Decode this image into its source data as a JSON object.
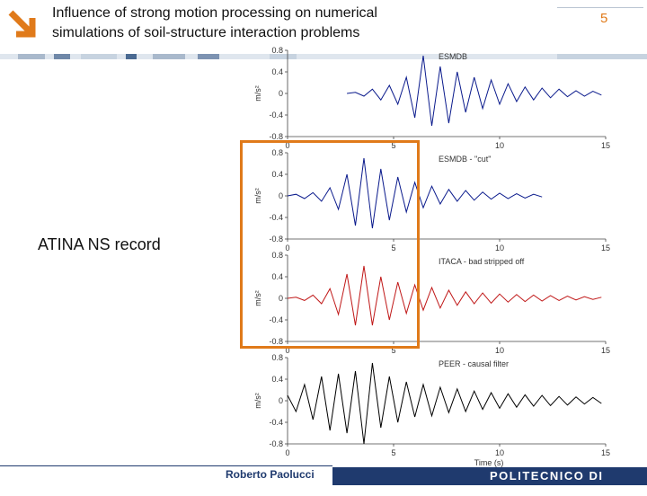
{
  "slide": {
    "title": "Influence of strong motion processing on numerical\nsimulations of soil-structure interaction problems",
    "page_number": "5",
    "record_label": "ATINA NS record",
    "author": "Roberto Paolucci",
    "institution": "POLITECNICO DI MILANO",
    "colors": {
      "accent": "#e07a1a",
      "navy": "#1f3a6e"
    }
  },
  "chart_data": [
    {
      "type": "line",
      "title": "ESMDB",
      "ylabel": "m/s²",
      "xlim": [
        0,
        15
      ],
      "ylim": [
        -0.8,
        0.8
      ],
      "yticks": [
        "0.8",
        "0.4",
        "0",
        "-0.4",
        "-0.8"
      ],
      "xticks": [
        "0",
        "5",
        "10",
        "15"
      ],
      "color": "#0a1a8c",
      "series": [
        {
          "x": [
            2.8,
            3.2,
            3.6,
            4.0,
            4.4,
            4.8,
            5.2,
            5.6,
            6.0,
            6.4,
            6.8,
            7.2,
            7.6,
            8.0,
            8.4,
            8.8,
            9.2,
            9.6,
            10.0,
            10.4,
            10.8,
            11.2,
            11.6,
            12.0,
            12.4,
            12.8,
            13.2,
            13.6,
            14.0,
            14.4,
            14.8
          ],
          "y": [
            0.0,
            0.02,
            -0.05,
            0.08,
            -0.12,
            0.15,
            -0.2,
            0.3,
            -0.45,
            0.7,
            -0.6,
            0.5,
            -0.55,
            0.4,
            -0.35,
            0.3,
            -0.28,
            0.25,
            -0.2,
            0.18,
            -0.15,
            0.12,
            -0.12,
            0.1,
            -0.08,
            0.08,
            -0.06,
            0.05,
            -0.05,
            0.04,
            -0.03
          ]
        }
      ]
    },
    {
      "type": "line",
      "title": "ESMDB - \"cut\"",
      "ylabel": "m/s²",
      "xlim": [
        0,
        15
      ],
      "ylim": [
        -0.8,
        0.8
      ],
      "yticks": [
        "0.8",
        "0.4",
        "0",
        "-0.4",
        "-0.8"
      ],
      "xticks": [
        "0",
        "5",
        "10",
        "15"
      ],
      "color": "#0a1a8c",
      "series": [
        {
          "x": [
            0.0,
            0.4,
            0.8,
            1.2,
            1.6,
            2.0,
            2.4,
            2.8,
            3.2,
            3.6,
            4.0,
            4.4,
            4.8,
            5.2,
            5.6,
            6.0,
            6.4,
            6.8,
            7.2,
            7.6,
            8.0,
            8.4,
            8.8,
            9.2,
            9.6,
            10.0,
            10.4,
            10.8,
            11.2,
            11.6,
            12.0
          ],
          "y": [
            0.0,
            0.03,
            -0.05,
            0.06,
            -0.1,
            0.15,
            -0.25,
            0.4,
            -0.55,
            0.7,
            -0.6,
            0.5,
            -0.45,
            0.35,
            -0.3,
            0.25,
            -0.22,
            0.18,
            -0.15,
            0.12,
            -0.1,
            0.1,
            -0.08,
            0.07,
            -0.06,
            0.05,
            -0.05,
            0.04,
            -0.04,
            0.03,
            -0.02
          ]
        }
      ]
    },
    {
      "type": "line",
      "title": "ITACA - bad stripped off",
      "ylabel": "m/s²",
      "xlim": [
        0,
        15
      ],
      "ylim": [
        -0.8,
        0.8
      ],
      "yticks": [
        "0.8",
        "0.4",
        "0",
        "-0.4",
        "-0.8"
      ],
      "xticks": [
        "0",
        "5",
        "10",
        "15"
      ],
      "color": "#c01818",
      "series": [
        {
          "x": [
            0.0,
            0.4,
            0.8,
            1.2,
            1.6,
            2.0,
            2.4,
            2.8,
            3.2,
            3.6,
            4.0,
            4.4,
            4.8,
            5.2,
            5.6,
            6.0,
            6.4,
            6.8,
            7.2,
            7.6,
            8.0,
            8.4,
            8.8,
            9.2,
            9.6,
            10.0,
            10.4,
            10.8,
            11.2,
            11.6,
            12.0,
            12.4,
            12.8,
            13.2,
            13.6,
            14.0,
            14.4,
            14.8
          ],
          "y": [
            0.0,
            0.02,
            -0.04,
            0.06,
            -0.1,
            0.18,
            -0.3,
            0.45,
            -0.5,
            0.6,
            -0.5,
            0.4,
            -0.4,
            0.3,
            -0.28,
            0.25,
            -0.22,
            0.2,
            -0.18,
            0.15,
            -0.13,
            0.12,
            -0.1,
            0.1,
            -0.09,
            0.08,
            -0.07,
            0.07,
            -0.06,
            0.06,
            -0.05,
            0.05,
            -0.04,
            0.04,
            -0.03,
            0.03,
            -0.02,
            0.02
          ]
        }
      ]
    },
    {
      "type": "line",
      "title": "PEER - causal filter",
      "ylabel": "m/s²",
      "xlabel": "Time (s)",
      "xlim": [
        0,
        15
      ],
      "ylim": [
        -0.8,
        0.8
      ],
      "yticks": [
        "0.8",
        "0.4",
        "0",
        "-0.4",
        "-0.8"
      ],
      "xticks": [
        "0",
        "5",
        "10",
        "15"
      ],
      "color": "#000000",
      "series": [
        {
          "x": [
            0.0,
            0.4,
            0.8,
            1.2,
            1.6,
            2.0,
            2.4,
            2.8,
            3.2,
            3.6,
            4.0,
            4.4,
            4.8,
            5.2,
            5.6,
            6.0,
            6.4,
            6.8,
            7.2,
            7.6,
            8.0,
            8.4,
            8.8,
            9.2,
            9.6,
            10.0,
            10.4,
            10.8,
            11.2,
            11.6,
            12.0,
            12.4,
            12.8,
            13.2,
            13.6,
            14.0,
            14.4,
            14.8
          ],
          "y": [
            0.1,
            -0.2,
            0.3,
            -0.35,
            0.45,
            -0.55,
            0.5,
            -0.6,
            0.55,
            -0.8,
            0.7,
            -0.5,
            0.45,
            -0.4,
            0.35,
            -0.3,
            0.3,
            -0.28,
            0.25,
            -0.22,
            0.22,
            -0.2,
            0.18,
            -0.16,
            0.15,
            -0.14,
            0.13,
            -0.12,
            0.11,
            -0.1,
            0.1,
            -0.09,
            0.08,
            -0.08,
            0.07,
            -0.06,
            0.06,
            -0.05
          ]
        }
      ]
    }
  ]
}
